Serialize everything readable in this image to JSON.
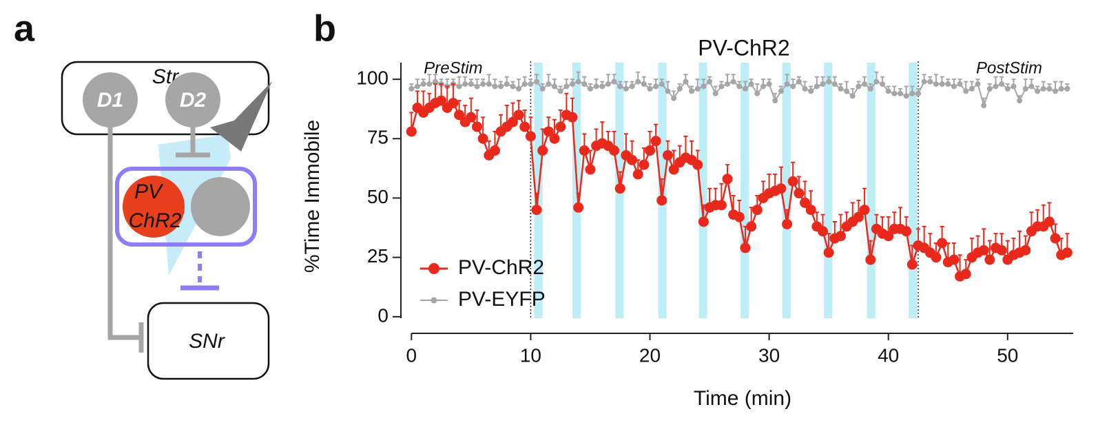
{
  "panel_a": {
    "label": "a",
    "top_box": "Str",
    "cell_1": "D1",
    "cell_2": "D2",
    "pv_line1": "PV",
    "pv_line2": "ChR2",
    "bottom_box": "SNr"
  },
  "chart_data": {
    "type": "line",
    "panel_label": "b",
    "title": "PV-ChR2",
    "annotations": [
      "PreStim",
      "PostStim"
    ],
    "xlabel": "Time (min)",
    "ylabel": "%Time Immobile",
    "xlim": [
      -1,
      55.5
    ],
    "ylim": [
      -7,
      107
    ],
    "xticks": [
      0,
      10,
      20,
      30,
      40,
      50
    ],
    "yticks": [
      0,
      25,
      50,
      75,
      100
    ],
    "legend": "lower left",
    "stim_color": "#bdeef8",
    "stim_starts": [
      10.3,
      13.5,
      17.1,
      20.7,
      24.1,
      27.6,
      31.1,
      34.6,
      38.2,
      41.7
    ],
    "stim_width": 0.7,
    "epoch_lines": [
      10,
      42.5
    ],
    "x": [
      0,
      0.5,
      1,
      1.5,
      2,
      2.5,
      3,
      3.5,
      4,
      4.5,
      5,
      5.5,
      6,
      6.5,
      7,
      7.5,
      8,
      8.5,
      9,
      9.5,
      10,
      10.5,
      11,
      11.5,
      12,
      12.5,
      13,
      13.5,
      14,
      14.5,
      15,
      15.5,
      16,
      16.5,
      17,
      17.5,
      18,
      18.5,
      19,
      19.5,
      20,
      20.5,
      21,
      21.5,
      22,
      22.5,
      23,
      23.5,
      24,
      24.5,
      25,
      25.5,
      26,
      26.5,
      27,
      27.5,
      28,
      28.5,
      29,
      29.5,
      30,
      30.5,
      31,
      31.5,
      32,
      32.5,
      33,
      33.5,
      34,
      34.5,
      35,
      35.5,
      36,
      36.5,
      37,
      37.5,
      38,
      38.5,
      39,
      39.5,
      40,
      40.5,
      41,
      41.5,
      42,
      42.5,
      43,
      43.5,
      44,
      44.5,
      45,
      45.5,
      46,
      46.5,
      47,
      47.5,
      48,
      48.5,
      49,
      49.5,
      50,
      50.5,
      51,
      51.5,
      52,
      52.5,
      53,
      53.5,
      54,
      54.5,
      55
    ],
    "series": [
      {
        "name": "PV-EYFP",
        "color": "#a6a6a6",
        "values": [
          96,
          97,
          98,
          98,
          99,
          98,
          97,
          98,
          97,
          98,
          98,
          97,
          98,
          98,
          97,
          97,
          98,
          97,
          96,
          98,
          98,
          99,
          96,
          98,
          97,
          95,
          97,
          98,
          99,
          98,
          96,
          97,
          97,
          98,
          99,
          97,
          96,
          97,
          99,
          98,
          96,
          97,
          98,
          95,
          92,
          96,
          99,
          95,
          96,
          97,
          99,
          94,
          97,
          98,
          99,
          97,
          96,
          98,
          94,
          97,
          98,
          91,
          95,
          98,
          97,
          99,
          96,
          95,
          97,
          98,
          99,
          98,
          96,
          95,
          93,
          97,
          98,
          96,
          99,
          98,
          95,
          94,
          94,
          93,
          94,
          94,
          99,
          99,
          98,
          98,
          98,
          97,
          98,
          95,
          96,
          98,
          89,
          96,
          97,
          98,
          96,
          97,
          91,
          96,
          97,
          95,
          96,
          96,
          95,
          96,
          96
        ],
        "errors": [
          2,
          3,
          2,
          4,
          3,
          2,
          3,
          2,
          4,
          3,
          2,
          3,
          2,
          4,
          3,
          2,
          3,
          2,
          4,
          3,
          2,
          3,
          2,
          4,
          3,
          2,
          3,
          2,
          4,
          3,
          2,
          3,
          2,
          4,
          3,
          2,
          3,
          2,
          4,
          3,
          2,
          3,
          2,
          4,
          3,
          2,
          3,
          2,
          4,
          3,
          2,
          3,
          2,
          4,
          3,
          2,
          3,
          2,
          4,
          3,
          2,
          3,
          2,
          4,
          3,
          2,
          3,
          2,
          4,
          3,
          2,
          3,
          2,
          4,
          3,
          2,
          3,
          2,
          4,
          3,
          2,
          3,
          2,
          4,
          3,
          2,
          3,
          2,
          4,
          3,
          2,
          3,
          2,
          4,
          3,
          2,
          3,
          2,
          4,
          3,
          2,
          3,
          2,
          4,
          3,
          2,
          3,
          2,
          4,
          3,
          2
        ]
      },
      {
        "name": "PV-ChR2",
        "color": "#e8291c",
        "values": [
          78,
          88,
          86,
          88,
          90,
          91,
          88,
          90,
          85,
          82,
          84,
          80,
          75,
          68,
          70,
          78,
          80,
          82,
          85,
          80,
          76,
          45,
          70,
          78,
          75,
          80,
          85,
          84,
          46,
          70,
          62,
          72,
          73,
          72,
          70,
          54,
          68,
          66,
          60,
          64,
          70,
          74,
          49,
          68,
          62,
          65,
          67,
          66,
          64,
          40,
          46,
          47,
          47,
          58,
          43,
          42,
          29,
          38,
          45,
          50,
          52,
          53,
          54,
          39,
          57,
          52,
          48,
          45,
          38,
          36,
          27,
          33,
          34,
          38,
          40,
          42,
          45,
          24,
          37,
          35,
          34,
          37,
          37,
          36,
          22,
          30,
          29,
          27,
          25,
          31,
          23,
          24,
          17,
          18,
          25,
          27,
          28,
          24,
          29,
          28,
          24,
          26,
          27,
          28,
          36,
          38,
          38,
          40,
          33,
          26,
          27
        ],
        "errors": [
          8,
          7,
          9,
          6,
          8,
          7,
          9,
          8,
          6,
          7,
          8,
          7,
          9,
          6,
          8,
          7,
          9,
          8,
          6,
          7,
          8,
          7,
          9,
          6,
          8,
          7,
          9,
          8,
          6,
          7,
          8,
          7,
          9,
          6,
          8,
          7,
          9,
          8,
          6,
          7,
          8,
          7,
          9,
          6,
          8,
          7,
          9,
          8,
          6,
          7,
          8,
          7,
          9,
          6,
          8,
          7,
          9,
          8,
          6,
          7,
          8,
          7,
          9,
          6,
          8,
          7,
          9,
          8,
          6,
          7,
          8,
          7,
          9,
          6,
          8,
          7,
          9,
          8,
          6,
          7,
          8,
          7,
          9,
          6,
          8,
          7,
          9,
          8,
          6,
          7,
          8,
          7,
          9,
          6,
          8,
          7,
          9,
          8,
          6,
          7,
          8,
          7,
          9,
          6,
          8,
          7,
          9,
          8,
          6,
          7,
          8
        ]
      }
    ]
  }
}
